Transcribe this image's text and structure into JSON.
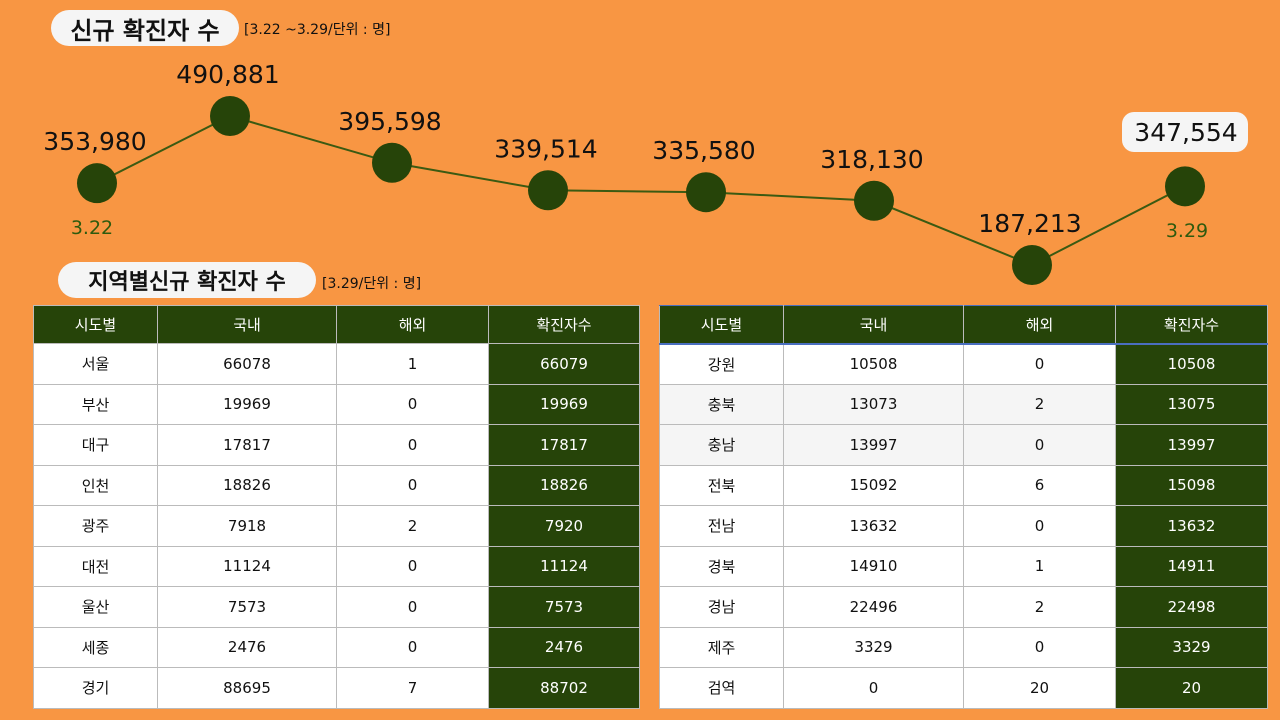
{
  "header": {
    "title": "신규 확진자 수",
    "subtitle": "[3.22 ~3.29/단위 : 명]"
  },
  "region": {
    "title": "지역별신규 확진자 수",
    "subtitle": "[3.29/단위 : 명]"
  },
  "colors": {
    "background": "#F89643",
    "accent": "#264409",
    "date_label": "#2E5A0E"
  },
  "chart_data": {
    "type": "line",
    "x_labels": {
      "first": "3.22",
      "last": "3.29"
    },
    "values": [
      353980,
      490881,
      395598,
      339514,
      335580,
      318130,
      187213,
      347554
    ],
    "value_labels": [
      "353,980",
      "490,881",
      "395,598",
      "339,514",
      "335,580",
      "318,130",
      "187,213",
      "347,554"
    ]
  },
  "table_headers": [
    "시도별",
    "국내",
    "해외",
    "확진자수"
  ],
  "left_rows": [
    [
      "서울",
      "66078",
      "1",
      "66079"
    ],
    [
      "부산",
      "19969",
      "0",
      "19969"
    ],
    [
      "대구",
      "17817",
      "0",
      "17817"
    ],
    [
      "인천",
      "18826",
      "0",
      "18826"
    ],
    [
      "광주",
      "7918",
      "2",
      "7920"
    ],
    [
      "대전",
      "11124",
      "0",
      "11124"
    ],
    [
      "울산",
      "7573",
      "0",
      "7573"
    ],
    [
      "세종",
      "2476",
      "0",
      "2476"
    ],
    [
      "경기",
      "88695",
      "7",
      "88702"
    ]
  ],
  "right_rows": [
    [
      "강원",
      "10508",
      "0",
      "10508"
    ],
    [
      "충북",
      "13073",
      "2",
      "13075"
    ],
    [
      "충남",
      "13997",
      "0",
      "13997"
    ],
    [
      "전북",
      "15092",
      "6",
      "15098"
    ],
    [
      "전남",
      "13632",
      "0",
      "13632"
    ],
    [
      "경북",
      "14910",
      "1",
      "14911"
    ],
    [
      "경남",
      "22496",
      "2",
      "22498"
    ],
    [
      "제주",
      "3329",
      "0",
      "3329"
    ],
    [
      "검역",
      "0",
      "20",
      "20"
    ]
  ]
}
